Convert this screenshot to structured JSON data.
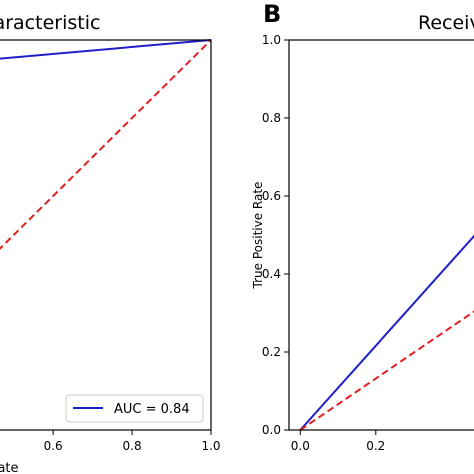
{
  "charts": [
    {
      "panel_letter": "",
      "title": "aracteristic",
      "xlabel": "ate",
      "ylabel": "",
      "x_ticks": [
        "0.6",
        "0.8",
        "1.0"
      ],
      "y_ticks": [],
      "legend_text": "AUC = 0.84"
    },
    {
      "panel_letter": "B",
      "title": "Receiv",
      "xlabel": "",
      "ylabel": "True Positive Rate",
      "x_ticks": [
        "0.0",
        "0.2"
      ],
      "y_ticks": [
        "0.0",
        "0.2",
        "0.4",
        "0.6",
        "0.8",
        "1.0"
      ],
      "legend_text": ""
    }
  ],
  "colors": {
    "roc": "#1f1fc8",
    "chance": "#e02020",
    "axis": "#000000"
  },
  "chart_data": [
    {
      "type": "line",
      "title": "aracteristic",
      "xlabel": "ate",
      "ylabel": "",
      "xlim": [
        0.44,
        1.0
      ],
      "ylim": [
        0.0,
        1.0
      ],
      "grid": false,
      "legend": "bottom-right",
      "series": [
        {
          "name": "AUC = 0.84",
          "style": "solid",
          "color": "#1f1fc8",
          "x": [
            0.44,
            1.0
          ],
          "y": [
            0.95,
            1.0
          ]
        },
        {
          "style": "dashed",
          "color": "#e02020",
          "x": [
            0.44,
            1.0
          ],
          "y": [
            0.44,
            1.0
          ]
        }
      ]
    },
    {
      "type": "line",
      "title": "Receiv",
      "xlabel": "",
      "ylabel": "True Positive Rate",
      "xlim": [
        -0.03,
        0.5
      ],
      "ylim": [
        0.0,
        1.0
      ],
      "grid": false,
      "legend": "",
      "series": [
        {
          "style": "solid",
          "color": "#1f1fc8",
          "x": [
            0.0,
            0.5
          ],
          "y": [
            0.0,
            0.54
          ]
        },
        {
          "style": "dashed",
          "color": "#e02020",
          "x": [
            0.0,
            0.5
          ],
          "y": [
            0.0,
            0.33
          ]
        }
      ]
    }
  ]
}
